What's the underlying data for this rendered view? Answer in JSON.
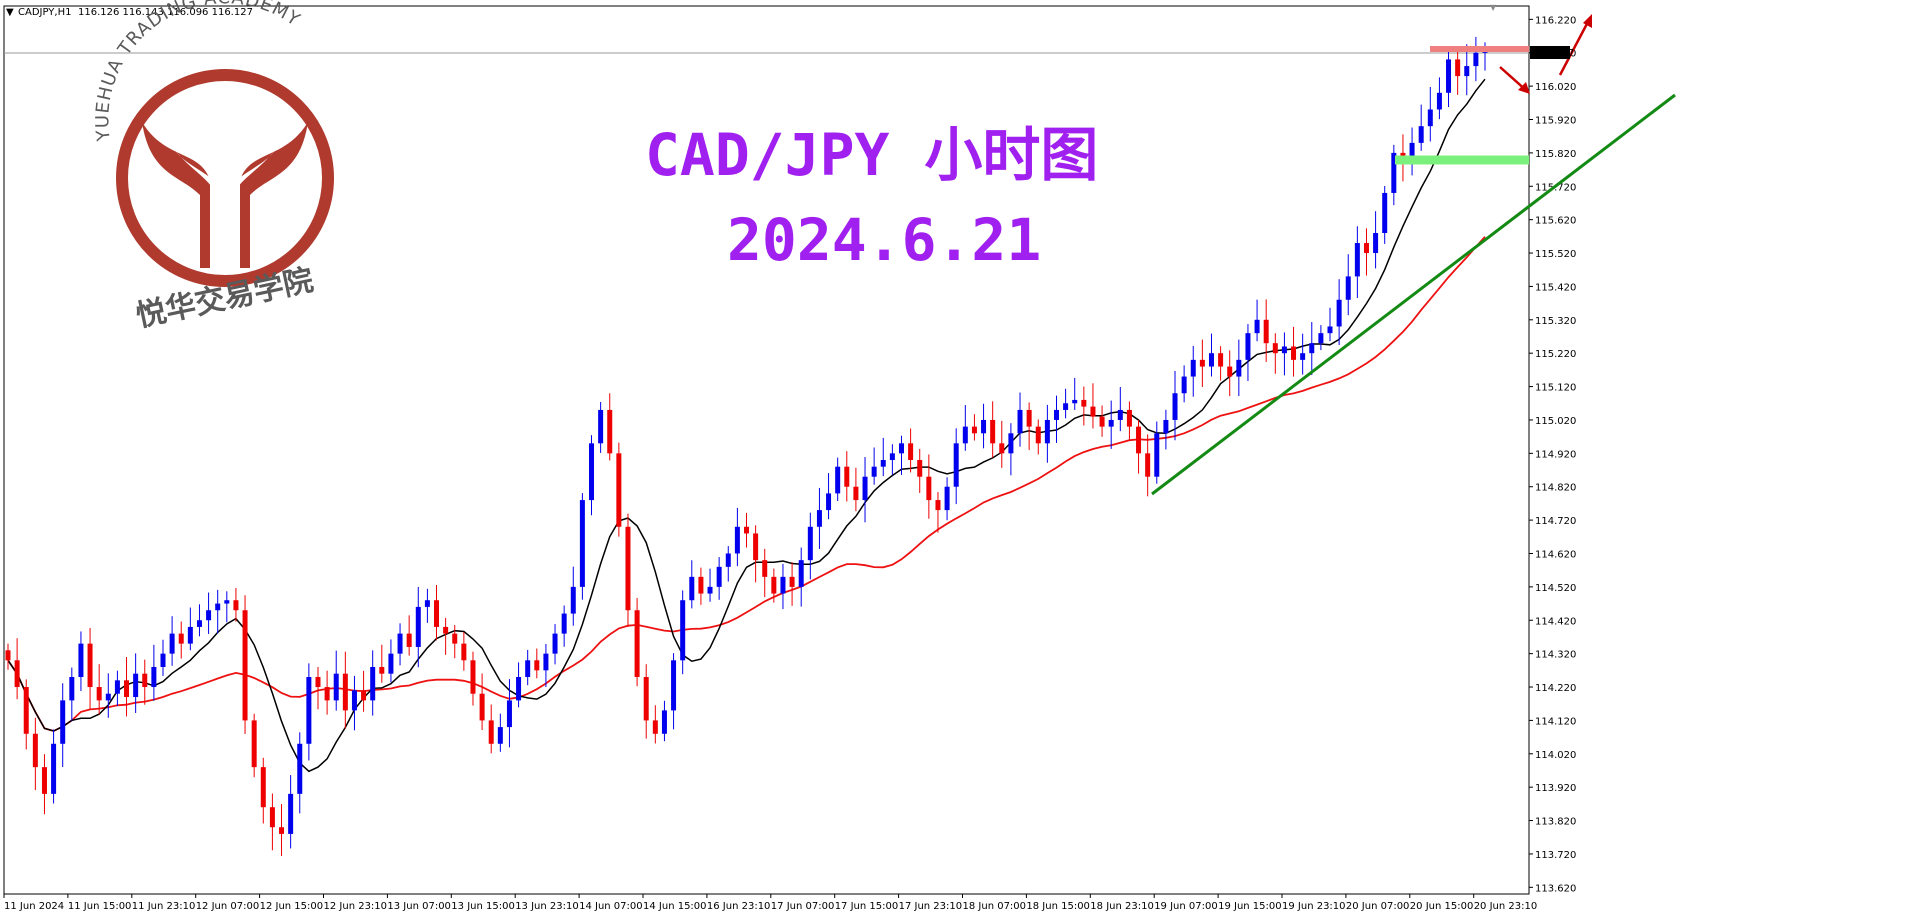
{
  "header": {
    "symbol": "CADJPY,H1",
    "ohlc": "116.126 116.143 116.096 116.127"
  },
  "logo": {
    "arc_text": "YUEHUA TRADING ACADEMY",
    "cn_text": "悦华交易学院"
  },
  "title": {
    "line1": "CAD/JPY 小时图",
    "line2": "2024.6.21"
  },
  "colors": {
    "bull": "#0000ee",
    "bear": "#ee0000",
    "ma_fast": "#000000",
    "ma_slow": "#ee1111",
    "trendline": "#138a13",
    "resistance": "#f08080",
    "support": "#7cf07c",
    "arrows": "#cc0000",
    "title": "#a020f0",
    "logo": "#b03a2e"
  },
  "chart_data": {
    "type": "candlestick",
    "ylim": [
      113.6,
      116.26
    ],
    "yticks": [
      "116.220",
      "116.120",
      "116.020",
      "115.920",
      "115.820",
      "115.720",
      "115.620",
      "115.520",
      "115.420",
      "115.320",
      "115.220",
      "115.120",
      "115.020",
      "114.920",
      "114.820",
      "114.720",
      "114.620",
      "114.520",
      "114.420",
      "114.320",
      "114.220",
      "114.120",
      "114.020",
      "113.920",
      "113.820",
      "113.720",
      "113.620"
    ],
    "xticks": [
      "11 Jun 2024",
      "11 Jun 15:00",
      "11 Jun 23:10",
      "12 Jun 07:00",
      "12 Jun 15:00",
      "12 Jun 23:10",
      "13 Jun 07:00",
      "13 Jun 15:00",
      "13 Jun 23:10",
      "14 Jun 07:00",
      "14 Jun 15:00",
      "16 Jun 23:10",
      "17 Jun 07:00",
      "17 Jun 15:00",
      "17 Jun 23:10",
      "18 Jun 07:00",
      "18 Jun 15:00",
      "18 Jun 23:10",
      "19 Jun 07:00",
      "19 Jun 15:00",
      "19 Jun 23:10",
      "20 Jun 07:00",
      "20 Jun 15:00",
      "20 Jun 23:10"
    ],
    "current_price": "116.127",
    "closes": [
      114.3,
      114.22,
      114.08,
      113.98,
      113.9,
      114.05,
      114.18,
      114.25,
      114.35,
      114.22,
      114.18,
      114.2,
      114.24,
      114.19,
      114.26,
      114.22,
      114.28,
      114.32,
      114.38,
      114.35,
      114.4,
      114.42,
      114.45,
      114.47,
      114.48,
      114.45,
      114.12,
      113.98,
      113.86,
      113.8,
      113.78,
      113.9,
      114.05,
      114.25,
      114.22,
      114.18,
      114.26,
      114.15,
      114.21,
      114.18,
      114.28,
      114.26,
      114.32,
      114.38,
      114.34,
      114.46,
      114.48,
      114.4,
      114.38,
      114.35,
      114.3,
      114.2,
      114.12,
      114.05,
      114.1,
      114.18,
      114.25,
      114.3,
      114.27,
      114.32,
      114.38,
      114.44,
      114.52,
      114.78,
      114.95,
      115.05,
      114.92,
      114.7,
      114.45,
      114.25,
      114.12,
      114.08,
      114.15,
      114.3,
      114.48,
      114.55,
      114.5,
      114.52,
      114.58,
      114.62,
      114.7,
      114.68,
      114.6,
      114.55,
      114.5,
      114.55,
      114.52,
      114.6,
      114.7,
      114.75,
      114.8,
      114.88,
      114.82,
      114.78,
      114.85,
      114.88,
      114.9,
      114.92,
      114.95,
      114.9,
      114.85,
      114.78,
      114.75,
      114.82,
      114.95,
      115.0,
      114.98,
      115.02,
      114.95,
      114.92,
      114.98,
      115.05,
      115.0,
      114.95,
      115.02,
      115.05,
      115.07,
      115.08,
      115.06,
      115.03,
      115.0,
      115.02,
      115.05,
      115.0,
      114.92,
      114.85,
      114.98,
      115.02,
      115.1,
      115.15,
      115.2,
      115.18,
      115.22,
      115.18,
      115.15,
      115.2,
      115.28,
      115.32,
      115.25,
      115.22,
      115.24,
      115.2,
      115.22,
      115.25,
      115.28,
      115.3,
      115.38,
      115.45,
      115.55,
      115.52,
      115.58,
      115.7,
      115.82,
      115.8,
      115.85,
      115.9,
      115.95,
      116.0,
      116.1,
      116.05,
      116.08,
      116.12,
      116.127
    ]
  }
}
